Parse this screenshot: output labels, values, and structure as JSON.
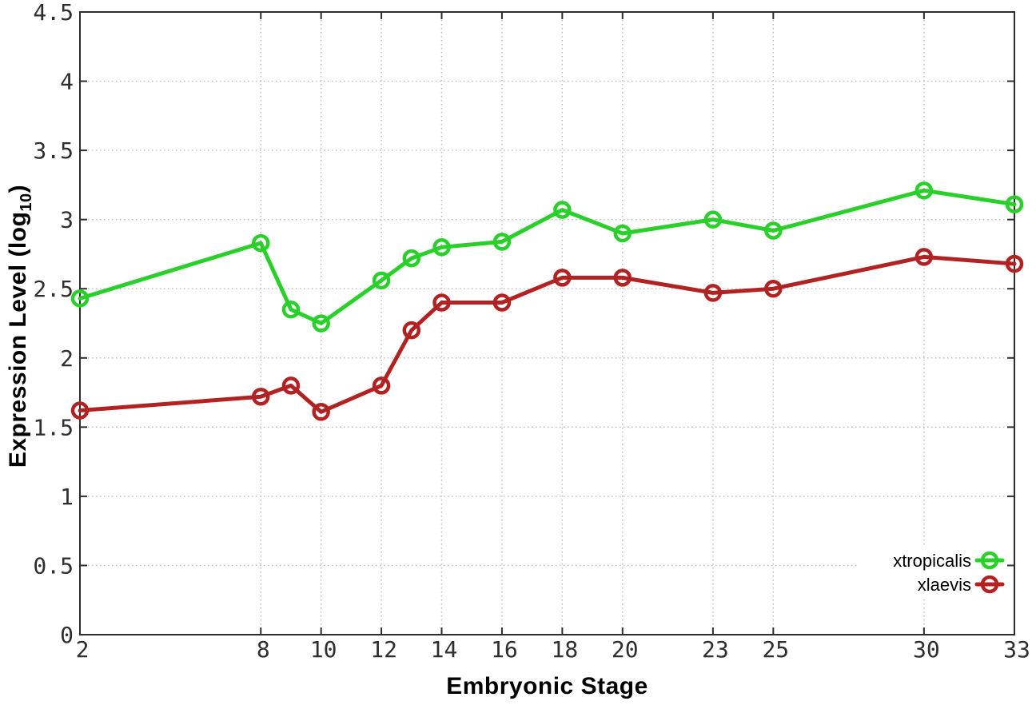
{
  "chart_data": {
    "type": "line",
    "title": "",
    "xlabel": "Embryonic Stage",
    "ylabel": "Expression Level (log10)",
    "xlim": [
      2,
      33
    ],
    "ylim": [
      0,
      4.5
    ],
    "grid": true,
    "legend_position": "inside-right-lower",
    "x": [
      2,
      8,
      9,
      10,
      12,
      13,
      14,
      16,
      18,
      20,
      23,
      25,
      30,
      33
    ],
    "x_ticks": [
      2,
      8,
      10,
      12,
      14,
      16,
      18,
      20,
      23,
      25,
      30,
      33
    ],
    "y_ticks": [
      0,
      0.5,
      1,
      1.5,
      2,
      2.5,
      3,
      3.5,
      4,
      4.5
    ],
    "y_tick_labels": [
      "0",
      "0.5",
      "1",
      "1.5",
      "2",
      "2.5",
      "3",
      "3.5",
      "4",
      "4.5"
    ],
    "series": [
      {
        "name": "xtropicalis",
        "color": "#2ad02a",
        "marker": "open-circle",
        "values": [
          2.43,
          2.83,
          2.35,
          2.25,
          2.56,
          2.72,
          2.8,
          2.84,
          3.07,
          2.9,
          3.0,
          2.92,
          3.21,
          3.11
        ]
      },
      {
        "name": "xlaevis",
        "color": "#b22222",
        "marker": "open-circle",
        "values": [
          1.62,
          1.72,
          1.8,
          1.61,
          1.8,
          2.2,
          2.4,
          2.4,
          2.58,
          2.58,
          2.47,
          2.5,
          2.73,
          2.68
        ]
      }
    ]
  },
  "axis": {
    "x_label": "Embryonic Stage",
    "y_label_main": "Expression Level (log",
    "y_label_sub": "10",
    "y_label_close": ")"
  },
  "colors": {
    "background": "#ffffff",
    "frame": "#2d2d2d",
    "grid": "#bbbbbb",
    "tick_label": "#2e2e2e",
    "legend_text": "#000000"
  }
}
